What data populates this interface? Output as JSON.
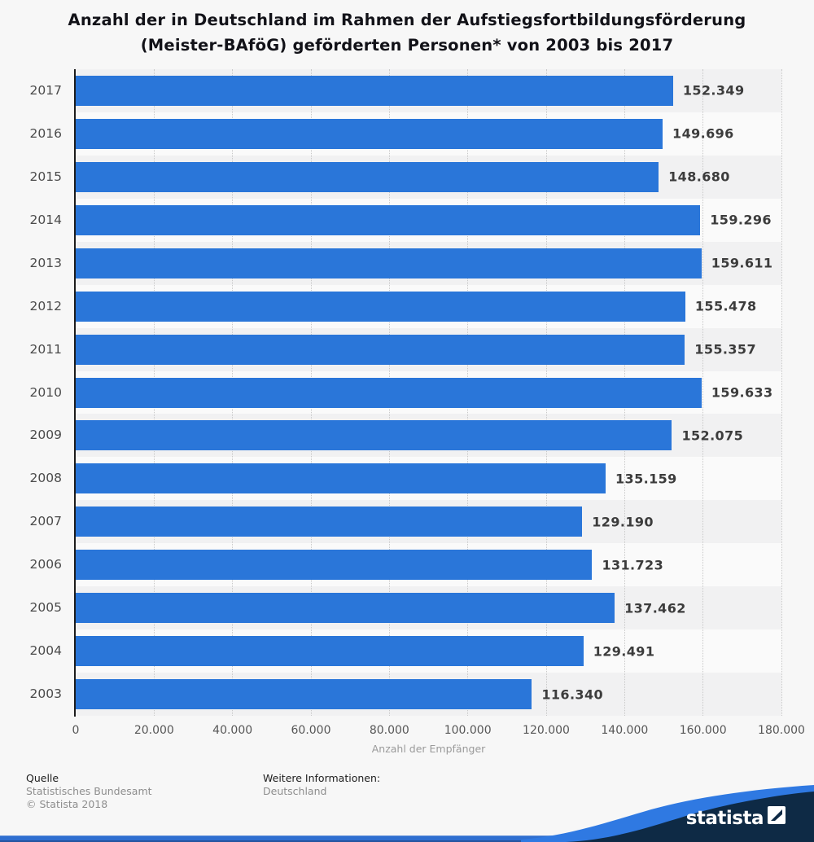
{
  "title": {
    "line1": "Anzahl der in Deutschland im Rahmen der Aufstiegsfortbildungsförderung",
    "line2": "(Meister-BAföG) geförderten Personen* von 2003 bis 2017"
  },
  "chart_data": {
    "type": "bar",
    "orientation": "horizontal",
    "title": "Anzahl der in Deutschland im Rahmen der Aufstiegsfortbildungsförderung (Meister-BAföG) geförderten Personen* von 2003 bis 2017",
    "categories": [
      "2017",
      "2016",
      "2015",
      "2014",
      "2013",
      "2012",
      "2011",
      "2010",
      "2009",
      "2008",
      "2007",
      "2006",
      "2005",
      "2004",
      "2003"
    ],
    "values": [
      152349,
      149696,
      148680,
      159296,
      159611,
      155478,
      155357,
      159633,
      152075,
      135159,
      129190,
      131723,
      137462,
      129491,
      116340
    ],
    "value_labels": [
      "152.349",
      "149.696",
      "148.680",
      "159.296",
      "159.611",
      "155.478",
      "155.357",
      "159.633",
      "152.075",
      "135.159",
      "129.190",
      "131.723",
      "137.462",
      "129.491",
      "116.340"
    ],
    "xlabel": "Anzahl der Empfänger",
    "x_ticks": [
      "0",
      "20.000",
      "40.000",
      "60.000",
      "80.000",
      "100.000",
      "120.000",
      "140.000",
      "160.000",
      "180.000"
    ],
    "xlim": [
      0,
      180000
    ],
    "grid": "vertical-dotted",
    "legend": "none",
    "bar_color": "#2a76d9",
    "band_color_even": "#f1f1f2",
    "band_color_odd": "#fafafa"
  },
  "footer": {
    "source_label": "Quelle",
    "source": "Statistisches Bundesamt",
    "copyright": "© Statista 2018",
    "info_label": "Weitere Informationen:",
    "info": "Deutschland"
  },
  "branding": {
    "logo_text": "statista",
    "navy": "#0e2a45",
    "wave_blue": "#2f79e2"
  }
}
